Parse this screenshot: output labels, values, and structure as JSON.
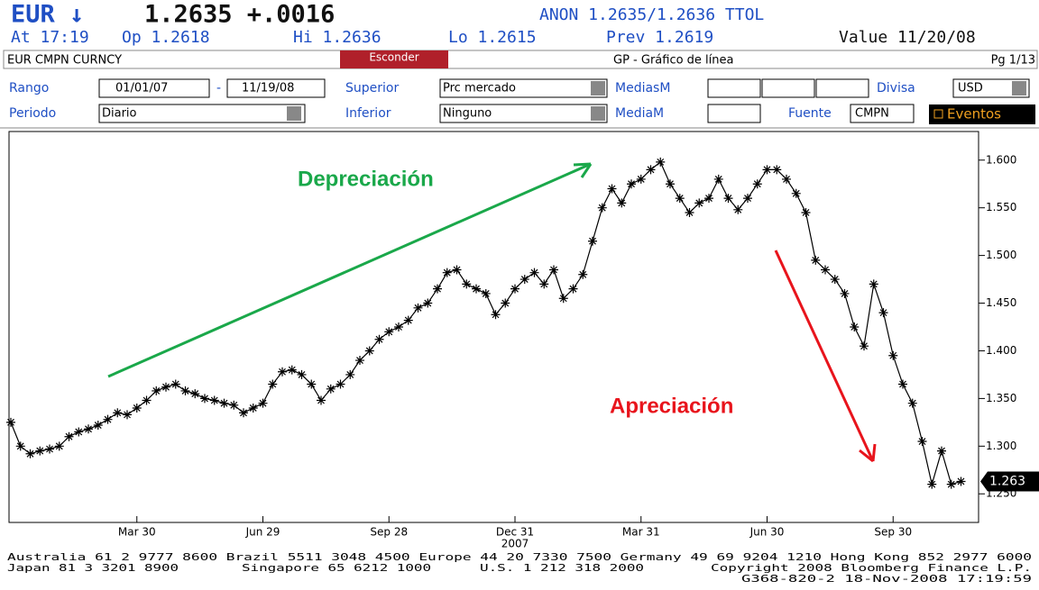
{
  "header": {
    "ticker": "EUR ↓",
    "quote": "1.2635 +.0016",
    "source": "ANON 1.2635/1.2636 TTOL",
    "at": "At 17:19",
    "open": "Op 1.2618",
    "high": "Hi 1.2636",
    "low": "Lo 1.2615",
    "prev": "Prev 1.2619",
    "value_date": "Value 11/20/08"
  },
  "toolbar": {
    "security": "EUR CMPN CURNCY",
    "button": "Esconder",
    "function": "GP - Gráfico de línea",
    "page": "Pg 1/13"
  },
  "form": {
    "range_label": "Rango",
    "range_start": "01/01/07",
    "range_sep": "-",
    "range_end": "11/19/08",
    "upper_label": "Superior",
    "upper_value": "Prc mercado",
    "mas_label": "MediasM",
    "currency_label": "Divisa",
    "currency_value": "USD",
    "period_label": "Periodo",
    "period_value": "Diario",
    "lower_label": "Inferior",
    "lower_value": "Ninguno",
    "ma_label": "MediaM",
    "source_label": "Fuente",
    "source_value": "CMPN",
    "events": "Eventos"
  },
  "chart_data": {
    "type": "line",
    "color": "#000000",
    "categories": [
      null,
      null,
      null,
      null,
      null,
      null,
      null,
      null,
      null,
      null,
      null,
      null,
      null,
      "Mar 30",
      null,
      null,
      null,
      null,
      null,
      null,
      null,
      null,
      null,
      null,
      null,
      null,
      "Jun 29",
      null,
      null,
      null,
      null,
      null,
      null,
      null,
      null,
      null,
      null,
      null,
      null,
      "Sep 28",
      null,
      null,
      null,
      null,
      null,
      null,
      null,
      null,
      null,
      null,
      null,
      null,
      "Dec 31",
      null,
      null,
      null,
      null,
      null,
      null,
      null,
      null,
      null,
      null,
      null,
      null,
      "Mar 31",
      null,
      null,
      null,
      null,
      null,
      null,
      null,
      null,
      null,
      null,
      null,
      null,
      "Jun 30",
      null,
      null,
      null,
      null,
      null,
      null,
      null,
      null,
      null,
      null,
      null,
      null,
      "Sep 30",
      null,
      null,
      null,
      null,
      null,
      null,
      null
    ],
    "year_label": "2007",
    "values": [
      1.325,
      1.3,
      1.292,
      1.295,
      1.297,
      1.3,
      1.31,
      1.315,
      1.318,
      1.322,
      1.328,
      1.335,
      1.333,
      1.34,
      1.348,
      1.358,
      1.362,
      1.365,
      1.358,
      1.355,
      1.35,
      1.348,
      1.345,
      1.343,
      1.335,
      1.34,
      1.345,
      1.365,
      1.378,
      1.38,
      1.375,
      1.365,
      1.348,
      1.36,
      1.365,
      1.375,
      1.39,
      1.4,
      1.412,
      1.42,
      1.425,
      1.432,
      1.445,
      1.45,
      1.465,
      1.482,
      1.485,
      1.47,
      1.465,
      1.46,
      1.438,
      1.45,
      1.465,
      1.475,
      1.482,
      1.47,
      1.485,
      1.455,
      1.465,
      1.48,
      1.515,
      1.55,
      1.57,
      1.555,
      1.575,
      1.58,
      1.59,
      1.598,
      1.575,
      1.56,
      1.545,
      1.555,
      1.56,
      1.58,
      1.56,
      1.548,
      1.56,
      1.575,
      1.59,
      1.59,
      1.58,
      1.565,
      1.545,
      1.495,
      1.485,
      1.475,
      1.46,
      1.425,
      1.405,
      1.47,
      1.44,
      1.395,
      1.365,
      1.345,
      1.305,
      1.26,
      1.295,
      1.26,
      1.263
    ],
    "ylim": [
      1.22,
      1.63
    ],
    "yticks": [
      {
        "value": 1.25,
        "label": "1.250"
      },
      {
        "value": 1.3,
        "label": "1.300"
      },
      {
        "value": 1.35,
        "label": "1.350"
      },
      {
        "value": 1.4,
        "label": "1.400"
      },
      {
        "value": 1.45,
        "label": "1.450"
      },
      {
        "value": 1.5,
        "label": "1.500"
      },
      {
        "value": 1.55,
        "label": "1.550"
      },
      {
        "value": 1.6,
        "label": "1.600"
      }
    ],
    "last_price": 1.263,
    "annotations": [
      {
        "text": "Depreciación",
        "color": "#1aa84a"
      },
      {
        "text": "Apreciación",
        "color": "#e8141c"
      }
    ]
  },
  "footer": {
    "line1": "Australia 61 2 9777 8600 Brazil 5511 3048 4500 Europe 44 20 7330 7500 Germany 49 69 9204 1210 Hong Kong 852 2977 6000",
    "japan": "Japan 81 3 3201 8900",
    "singapore": "Singapore 65 6212 1000",
    "us": "U.S. 1 212 318 2000",
    "copyright": "Copyright 2008 Bloomberg Finance L.P.",
    "stamp": "G368-820-2 18-Nov-2008 17:19:59"
  }
}
